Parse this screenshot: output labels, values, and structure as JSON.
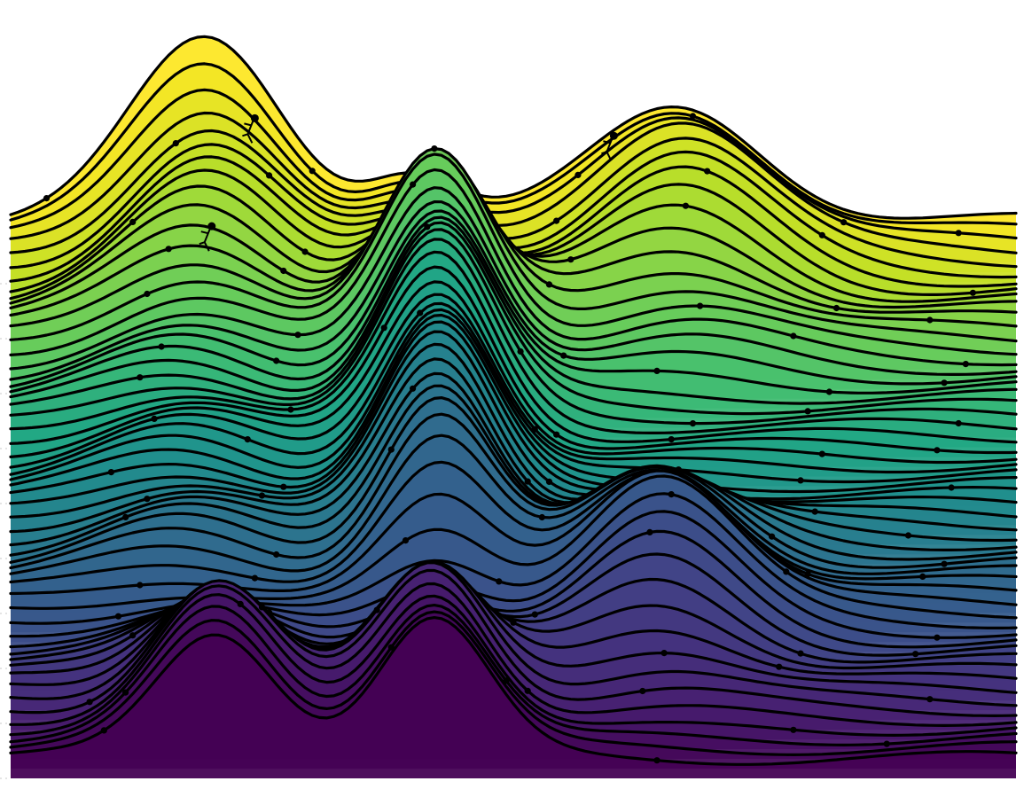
{
  "chart_data": {
    "type": "area",
    "style": "ridgeline (joyplot) with stick-figure climbers",
    "title": "",
    "xlabel": "",
    "ylabel": "",
    "xlim": [
      0,
      1
    ],
    "colormap": "viridis",
    "colors": {
      "top": "#fde725",
      "upper": "#7ad151",
      "middle": "#21918c",
      "lower": "#3b528b",
      "bottom": "#440154"
    },
    "grid": true,
    "legend": "none",
    "series_count": 56,
    "climbers": [
      {
        "series": 2,
        "x": 0.24,
        "pose": "hanging"
      },
      {
        "series": 1,
        "x": 0.6,
        "pose": "climbing"
      },
      {
        "series": 10,
        "x": 0.2,
        "pose": "climbing"
      }
    ]
  }
}
